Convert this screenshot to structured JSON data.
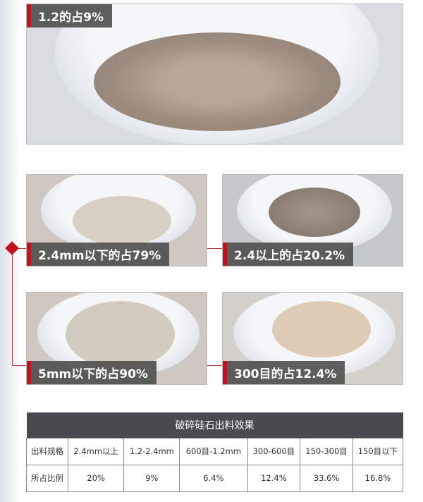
{
  "photos": [
    {
      "label": "1.2的占9%"
    },
    {
      "label": "2.4mm以下的占79%"
    },
    {
      "label": "2.4以上的占20.2%"
    },
    {
      "label": "5mm以下的占90%"
    },
    {
      "label": "300目的占12.4%"
    }
  ],
  "table": {
    "title": "破碎硅石出料效果",
    "rows": [
      [
        "出料规格",
        "2.4mm以上",
        "1.2-2.4mm",
        "600目-1.2mm",
        "300-600目",
        "150-300目",
        "150目以下"
      ],
      [
        "所占比例",
        "20%",
        "9%",
        "6.4%",
        "12.4%",
        "33.6%",
        "16.8%"
      ]
    ]
  },
  "colors": {
    "accent": "#c0141c",
    "label_bg": "#505050",
    "table_header": "#4a4b50"
  }
}
